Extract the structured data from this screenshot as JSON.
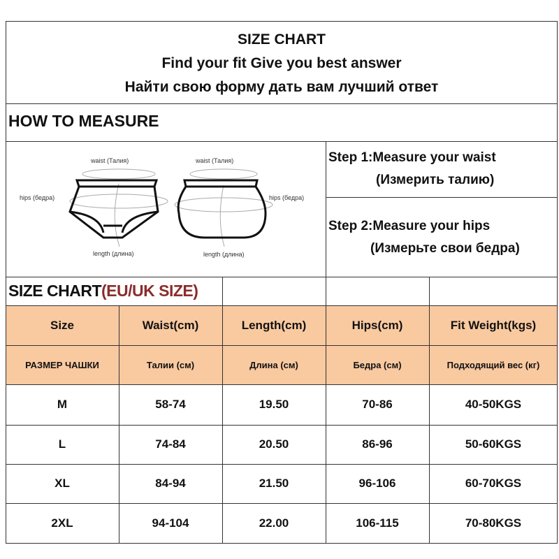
{
  "header": {
    "title": "SIZE CHART",
    "subtitle_en": "Find your fit Give you best answer",
    "subtitle_ru": "Найти свою форму дать вам лучший ответ"
  },
  "how_to_measure": {
    "heading": "HOW TO MEASURE",
    "diagram_labels": {
      "waist": "waist (Талия)",
      "hips": "hips (бедра)",
      "length": "length (длина)"
    },
    "steps": [
      {
        "en": "Step 1:Measure your waist",
        "ru": "(Измерить талию)"
      },
      {
        "en": "Step 2:Measure your hips",
        "ru": "(Измерьте свои бедра)"
      }
    ]
  },
  "size_chart": {
    "heading": "SIZE CHART",
    "heading_suffix": "(EU/UK SIZE)",
    "accent_color": "#8b2c2c",
    "header_bg": "#f9c9a0",
    "columns_en": [
      "Size",
      "Waist(cm)",
      "Length(cm)",
      "Hips(cm)",
      "Fit  Weight(kgs)"
    ],
    "columns_ru": [
      "РАЗМЕР ЧАШКИ",
      "Талии (см)",
      "Длина (см)",
      "Бедра (см)",
      "Подходящий вес (кг)"
    ],
    "rows": [
      [
        "M",
        "58-74",
        "19.50",
        "70-86",
        "40-50KGS"
      ],
      [
        "L",
        "74-84",
        "20.50",
        "86-96",
        "50-60KGS"
      ],
      [
        "XL",
        "84-94",
        "21.50",
        "96-106",
        "60-70KGS"
      ],
      [
        "2XL",
        "94-104",
        "22.00",
        "106-115",
        "70-80KGS"
      ]
    ]
  }
}
